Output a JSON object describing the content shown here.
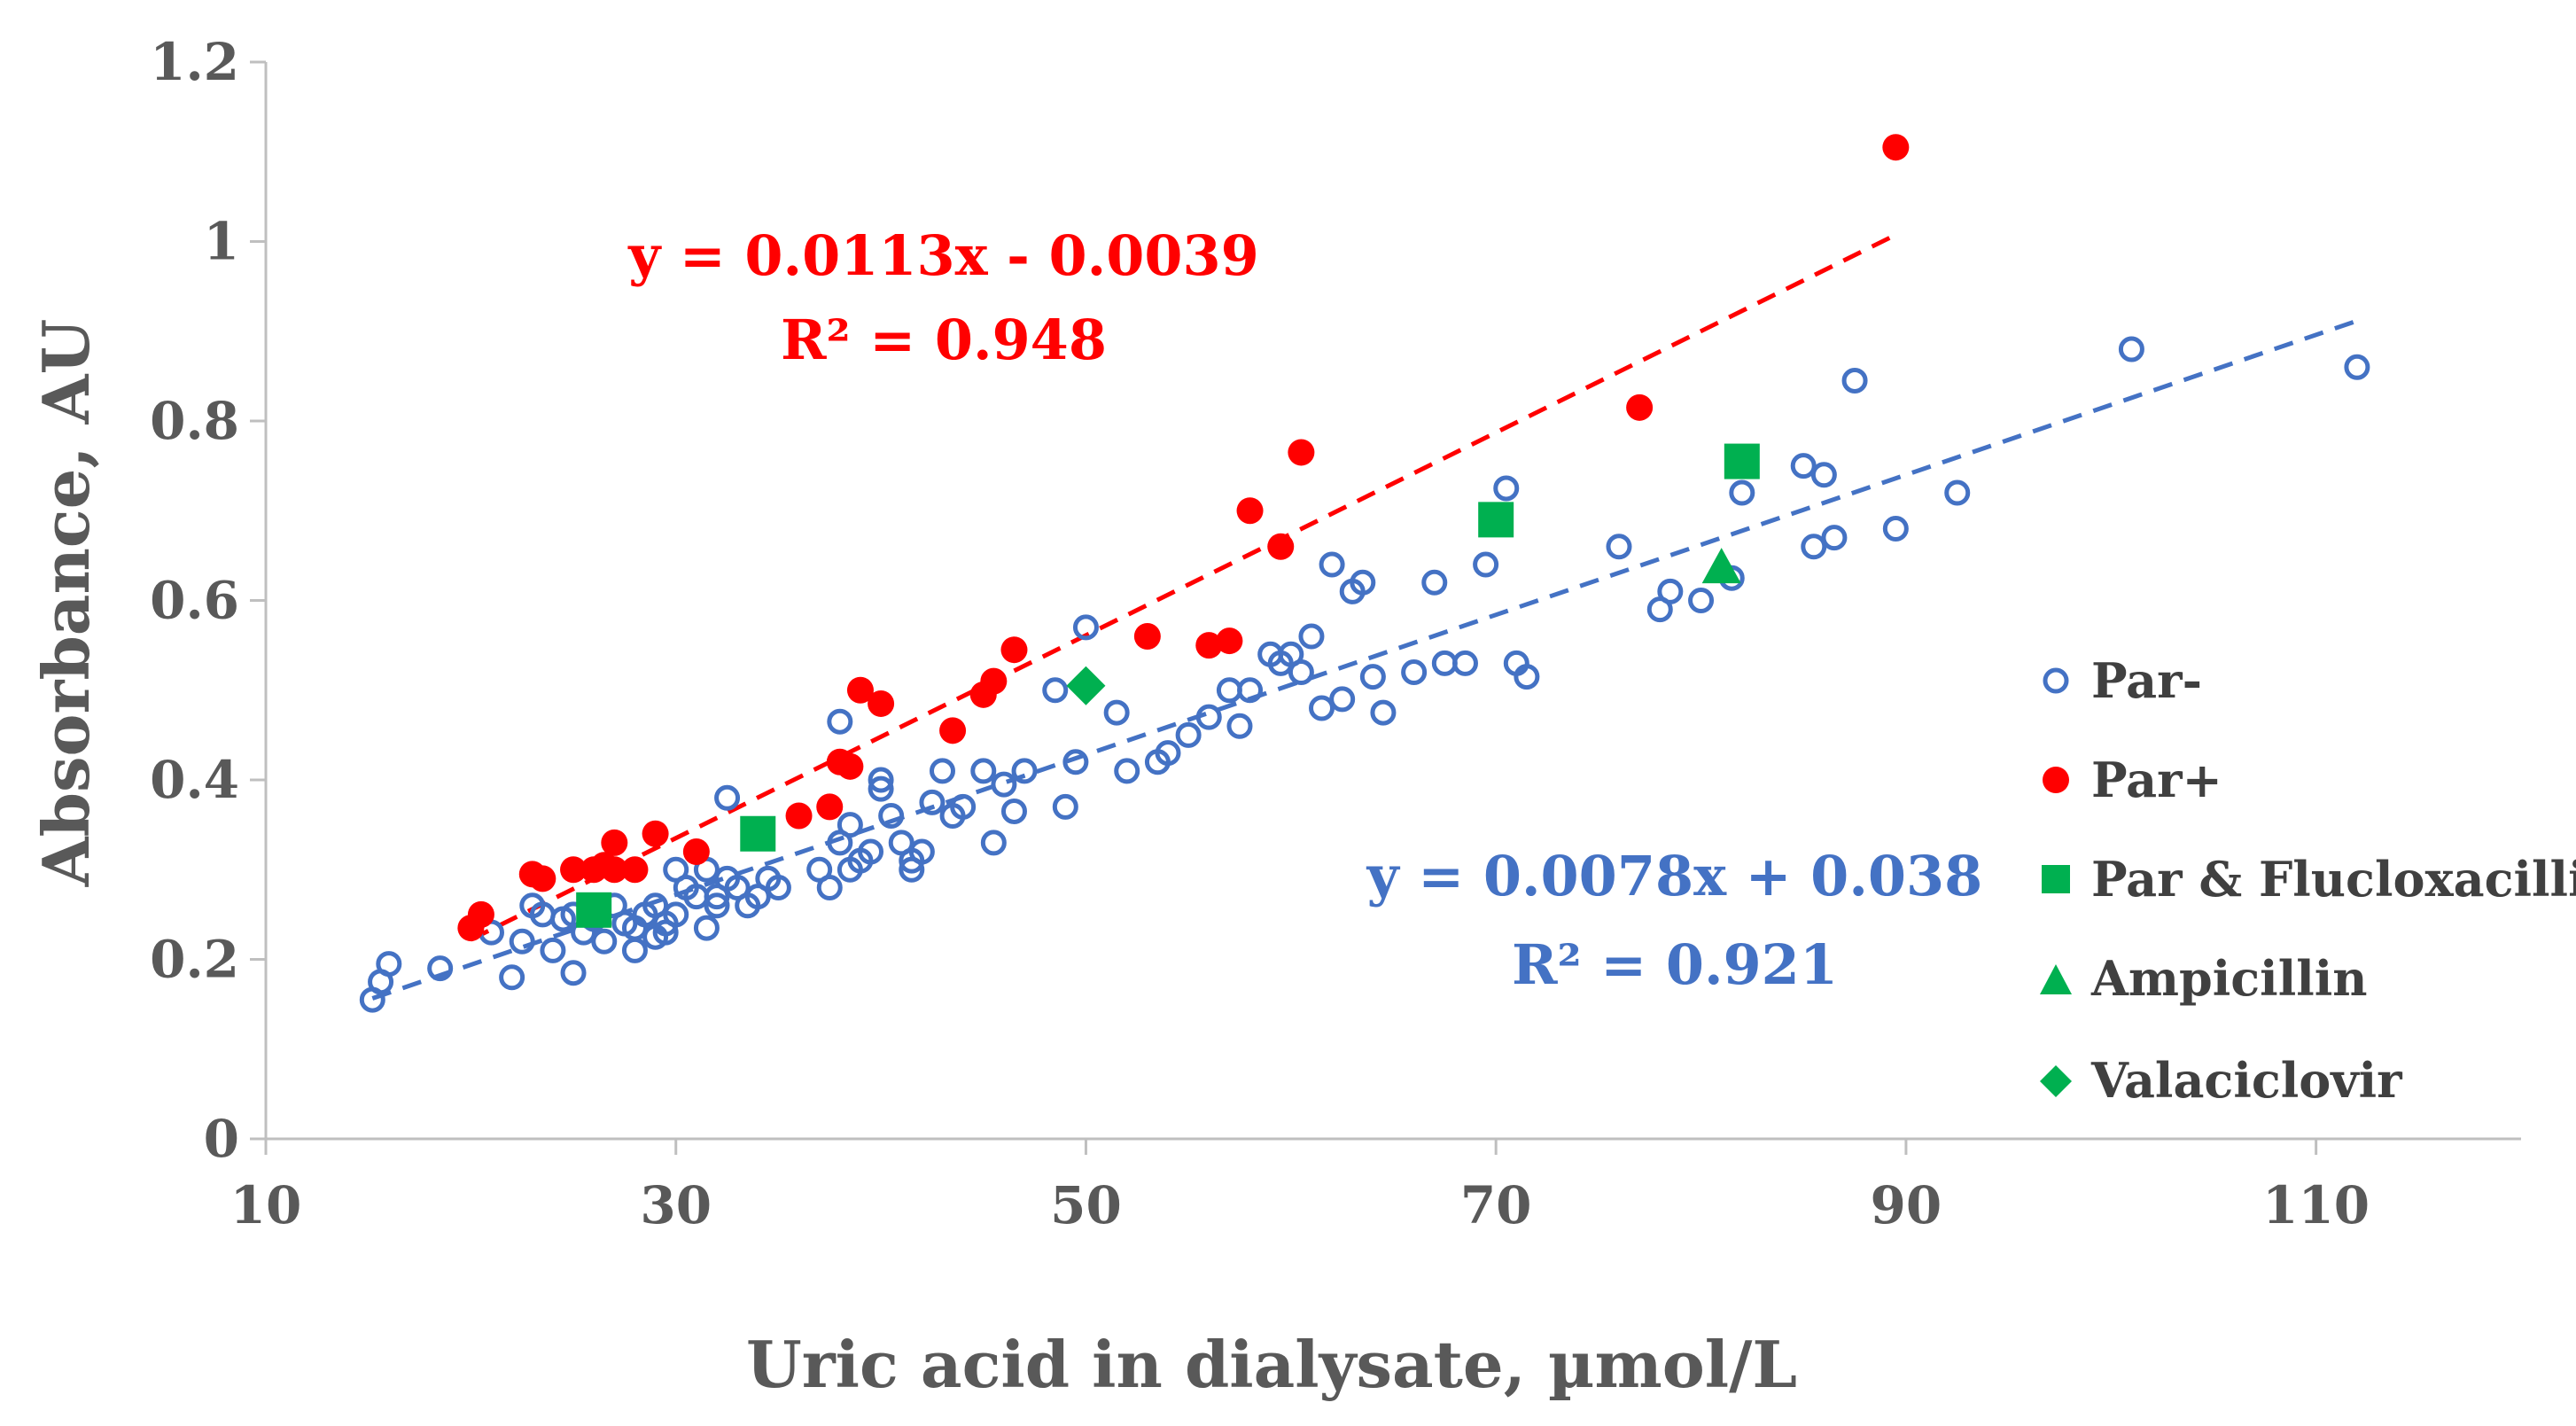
{
  "chart_data": {
    "type": "scatter",
    "title": "",
    "xlabel": "Uric acid in dialysate, µmol/L",
    "ylabel": "Absorbance, AU",
    "xlim": [
      10,
      120
    ],
    "ylim": [
      0,
      1.2
    ],
    "x_ticks": [
      "10",
      "30",
      "50",
      "70",
      "90",
      "110"
    ],
    "x_tick_values": [
      10,
      30,
      50,
      70,
      90,
      110
    ],
    "y_ticks": [
      "0",
      "0.2",
      "0.4",
      "0.6",
      "0.8",
      "1",
      "1.2"
    ],
    "y_tick_values": [
      0,
      0.2,
      0.4,
      0.6,
      0.8,
      1.0,
      1.2
    ],
    "grid": false,
    "legend_position": "right",
    "colors": {
      "par_minus": "#4472c4",
      "par_plus": "#ff0000",
      "green": "#00b050",
      "axis": "#bfbfbf"
    },
    "series": [
      {
        "name": "Par-",
        "marker": "open-circle",
        "color": "#4472c4",
        "x": [
          15.2,
          15.6,
          16.0,
          18.5,
          21.0,
          22.0,
          22.5,
          23.0,
          23.5,
          24.0,
          24.5,
          25.0,
          25.0,
          25.5,
          26.0,
          26.5,
          27.0,
          27.5,
          28.0,
          28.0,
          28.5,
          29.0,
          29.0,
          29.5,
          29.5,
          30.0,
          30.0,
          30.5,
          31.0,
          31.5,
          31.5,
          32.0,
          32.0,
          32.5,
          32.5,
          33.0,
          33.5,
          34.0,
          34.5,
          35.0,
          37.0,
          37.5,
          38.0,
          38.0,
          38.5,
          38.5,
          39.0,
          39.5,
          40.0,
          40.0,
          40.5,
          41.0,
          41.5,
          41.5,
          42.0,
          42.5,
          43.0,
          43.5,
          44.0,
          45.0,
          45.5,
          46.0,
          46.5,
          47.0,
          48.5,
          49.0,
          49.5,
          50.0,
          51.5,
          52.0,
          53.5,
          54.0,
          55.0,
          56.0,
          57.0,
          57.5,
          58.0,
          59.0,
          59.5,
          60.0,
          60.5,
          61.0,
          61.5,
          62.0,
          62.5,
          63.0,
          63.5,
          64.0,
          64.5,
          66.0,
          67.0,
          67.5,
          68.5,
          69.5,
          70.5,
          71.0,
          71.5,
          76.0,
          78.0,
          78.5,
          80.0,
          81.5,
          82.0,
          85.0,
          85.5,
          86.0,
          86.5,
          87.5,
          89.5,
          92.5,
          101.0,
          112.0
        ],
        "y": [
          0.155,
          0.175,
          0.195,
          0.19,
          0.23,
          0.18,
          0.22,
          0.26,
          0.25,
          0.21,
          0.245,
          0.185,
          0.25,
          0.23,
          0.245,
          0.22,
          0.26,
          0.24,
          0.21,
          0.235,
          0.25,
          0.225,
          0.26,
          0.23,
          0.24,
          0.3,
          0.25,
          0.28,
          0.27,
          0.235,
          0.3,
          0.26,
          0.27,
          0.38,
          0.29,
          0.28,
          0.26,
          0.27,
          0.29,
          0.28,
          0.3,
          0.28,
          0.33,
          0.465,
          0.3,
          0.35,
          0.31,
          0.32,
          0.39,
          0.4,
          0.36,
          0.33,
          0.31,
          0.3,
          0.32,
          0.375,
          0.41,
          0.36,
          0.37,
          0.41,
          0.33,
          0.395,
          0.365,
          0.41,
          0.5,
          0.37,
          0.42,
          0.57,
          0.475,
          0.41,
          0.42,
          0.43,
          0.45,
          0.47,
          0.5,
          0.46,
          0.5,
          0.54,
          0.53,
          0.54,
          0.52,
          0.56,
          0.48,
          0.64,
          0.49,
          0.61,
          0.62,
          0.515,
          0.475,
          0.52,
          0.62,
          0.53,
          0.53,
          0.64,
          0.725,
          0.53,
          0.515,
          0.66,
          0.59,
          0.61,
          0.6,
          0.625,
          0.72,
          0.75,
          0.66,
          0.74,
          0.67,
          0.845,
          0.68,
          0.72,
          0.88,
          0.86
        ]
      },
      {
        "name": "Par+",
        "marker": "filled-circle",
        "color": "#ff0000",
        "x": [
          20.0,
          20.5,
          23.0,
          23.5,
          25.0,
          26.0,
          26.5,
          27.0,
          27.0,
          28.0,
          29.0,
          31.0,
          36.0,
          37.5,
          38.0,
          38.5,
          39.0,
          40.0,
          43.5,
          45.0,
          45.5,
          46.5,
          53.0,
          56.0,
          57.0,
          58.0,
          59.5,
          60.5,
          77.0,
          89.5
        ],
        "y": [
          0.235,
          0.25,
          0.295,
          0.29,
          0.3,
          0.3,
          0.305,
          0.3,
          0.33,
          0.3,
          0.34,
          0.32,
          0.36,
          0.37,
          0.42,
          0.415,
          0.5,
          0.485,
          0.455,
          0.495,
          0.51,
          0.545,
          0.56,
          0.55,
          0.555,
          0.7,
          0.66,
          0.765,
          0.815,
          1.105
        ]
      },
      {
        "name": "Par & Flucloxacillin",
        "marker": "filled-square",
        "color": "#00b050",
        "x": [
          26.0,
          34.0,
          70.0,
          82.0
        ],
        "y": [
          0.255,
          0.34,
          0.69,
          0.755
        ]
      },
      {
        "name": "Ampicillin",
        "marker": "filled-triangle",
        "color": "#00b050",
        "x": [
          81.0
        ],
        "y": [
          0.635
        ]
      },
      {
        "name": "Valaciclovir",
        "marker": "filled-diamond",
        "color": "#00b050",
        "x": [
          50.0
        ],
        "y": [
          0.505
        ]
      }
    ],
    "trendlines": [
      {
        "name": "Par+ fit",
        "color": "#ff0000",
        "slope": 0.0113,
        "intercept": -0.0039,
        "x_range": [
          20,
          89.5
        ],
        "equation": "y = 0.0113x - 0.0039",
        "r2": "R² = 0.948"
      },
      {
        "name": "Par- fit",
        "color": "#4472c4",
        "slope": 0.0078,
        "intercept": 0.038,
        "x_range": [
          15.2,
          112
        ],
        "equation": "y = 0.0078x + 0.038",
        "r2": "R² = 0.921"
      }
    ]
  }
}
